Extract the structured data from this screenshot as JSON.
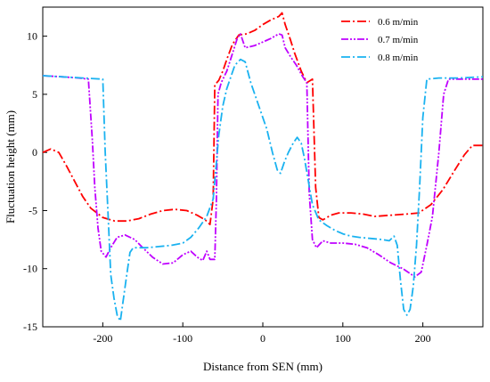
{
  "chart_data": {
    "type": "line",
    "xlabel": "Distance from SEN (mm)",
    "ylabel": "Fluctuation height (mm)",
    "xlim": [
      -275,
      275
    ],
    "ylim": [
      -15,
      12.5
    ],
    "xticks": [
      -200,
      -100,
      0,
      100,
      200
    ],
    "yticks": [
      -15,
      -10,
      -5,
      0,
      5,
      10
    ],
    "xtick_labels": [
      "-200",
      "-100",
      "0",
      "100",
      "200"
    ],
    "ytick_labels": [
      "-15",
      "-10",
      "-5",
      "0",
      "5",
      "10"
    ],
    "legend_position": "top-right",
    "grid": false,
    "series": [
      {
        "name": "0.6 m/min",
        "color": "#ff0000",
        "dash": "10 3 2 3",
        "points": [
          [
            -275,
            0.0
          ],
          [
            -265,
            0.3
          ],
          [
            -255,
            0.0
          ],
          [
            -245,
            -1.2
          ],
          [
            -235,
            -2.5
          ],
          [
            -225,
            -3.8
          ],
          [
            -215,
            -4.8
          ],
          [
            -200,
            -5.6
          ],
          [
            -185,
            -5.9
          ],
          [
            -170,
            -5.9
          ],
          [
            -155,
            -5.7
          ],
          [
            -140,
            -5.3
          ],
          [
            -125,
            -5.0
          ],
          [
            -110,
            -4.9
          ],
          [
            -95,
            -5.0
          ],
          [
            -82,
            -5.4
          ],
          [
            -72,
            -5.8
          ],
          [
            -66,
            -6.2
          ],
          [
            -62,
            -4.0
          ],
          [
            -60,
            5.8
          ],
          [
            -55,
            6.2
          ],
          [
            -50,
            7.0
          ],
          [
            -45,
            8.0
          ],
          [
            -38,
            9.3
          ],
          [
            -30,
            10.1
          ],
          [
            -20,
            10.2
          ],
          [
            -10,
            10.5
          ],
          [
            0,
            11.0
          ],
          [
            10,
            11.4
          ],
          [
            20,
            11.7
          ],
          [
            24,
            12.0
          ],
          [
            28,
            11.0
          ],
          [
            34,
            9.8
          ],
          [
            40,
            8.5
          ],
          [
            48,
            7.0
          ],
          [
            55,
            6.0
          ],
          [
            62,
            6.3
          ],
          [
            66,
            -3.0
          ],
          [
            70,
            -5.6
          ],
          [
            75,
            -5.8
          ],
          [
            85,
            -5.4
          ],
          [
            95,
            -5.2
          ],
          [
            110,
            -5.2
          ],
          [
            125,
            -5.3
          ],
          [
            140,
            -5.5
          ],
          [
            160,
            -5.4
          ],
          [
            180,
            -5.3
          ],
          [
            195,
            -5.2
          ],
          [
            210,
            -4.5
          ],
          [
            225,
            -3.2
          ],
          [
            240,
            -1.5
          ],
          [
            252,
            -0.2
          ],
          [
            262,
            0.6
          ],
          [
            275,
            0.6
          ]
        ]
      },
      {
        "name": "0.7 m/min",
        "color": "#bf00ff",
        "dash": "8 2 2 2 2 2",
        "points": [
          [
            -275,
            6.6
          ],
          [
            -250,
            6.5
          ],
          [
            -230,
            6.4
          ],
          [
            -218,
            6.3
          ],
          [
            -213,
            1.0
          ],
          [
            -210,
            -3.0
          ],
          [
            -206,
            -6.5
          ],
          [
            -202,
            -8.5
          ],
          [
            -196,
            -9.0
          ],
          [
            -190,
            -8.2
          ],
          [
            -182,
            -7.3
          ],
          [
            -172,
            -7.1
          ],
          [
            -160,
            -7.5
          ],
          [
            -150,
            -8.2
          ],
          [
            -138,
            -9.0
          ],
          [
            -125,
            -9.6
          ],
          [
            -112,
            -9.5
          ],
          [
            -100,
            -8.8
          ],
          [
            -90,
            -8.5
          ],
          [
            -82,
            -9.0
          ],
          [
            -75,
            -9.3
          ],
          [
            -70,
            -8.5
          ],
          [
            -66,
            -9.2
          ],
          [
            -60,
            -9.2
          ],
          [
            -58,
            -4.0
          ],
          [
            -56,
            5.0
          ],
          [
            -52,
            6.0
          ],
          [
            -45,
            7.0
          ],
          [
            -38,
            8.5
          ],
          [
            -32,
            9.8
          ],
          [
            -28,
            10.2
          ],
          [
            -22,
            9.0
          ],
          [
            -10,
            9.2
          ],
          [
            0,
            9.5
          ],
          [
            10,
            9.8
          ],
          [
            20,
            10.2
          ],
          [
            24,
            10.1
          ],
          [
            28,
            9.0
          ],
          [
            35,
            8.2
          ],
          [
            42,
            7.5
          ],
          [
            50,
            6.5
          ],
          [
            55,
            6.0
          ],
          [
            58,
            -3.5
          ],
          [
            62,
            -7.5
          ],
          [
            67,
            -8.2
          ],
          [
            75,
            -7.6
          ],
          [
            85,
            -7.8
          ],
          [
            100,
            -7.8
          ],
          [
            115,
            -7.9
          ],
          [
            130,
            -8.2
          ],
          [
            145,
            -8.8
          ],
          [
            160,
            -9.5
          ],
          [
            175,
            -10.0
          ],
          [
            190,
            -10.7
          ],
          [
            198,
            -10.3
          ],
          [
            205,
            -8.0
          ],
          [
            212,
            -5.5
          ],
          [
            220,
            0.0
          ],
          [
            226,
            5.0
          ],
          [
            232,
            6.3
          ],
          [
            250,
            6.3
          ],
          [
            275,
            6.3
          ]
        ]
      },
      {
        "name": "0.8 m/min",
        "color": "#1ab2f0",
        "dash": "10 3 2 3",
        "points": [
          [
            -275,
            6.6
          ],
          [
            -250,
            6.5
          ],
          [
            -225,
            6.4
          ],
          [
            -200,
            6.3
          ],
          [
            -197,
            0.0
          ],
          [
            -193,
            -6.0
          ],
          [
            -190,
            -10.5
          ],
          [
            -186,
            -12.5
          ],
          [
            -182,
            -14.0
          ],
          [
            -178,
            -14.5
          ],
          [
            -175,
            -13.0
          ],
          [
            -170,
            -10.5
          ],
          [
            -166,
            -8.6
          ],
          [
            -162,
            -8.2
          ],
          [
            -145,
            -8.2
          ],
          [
            -130,
            -8.1
          ],
          [
            -115,
            -8.0
          ],
          [
            -100,
            -7.8
          ],
          [
            -90,
            -7.3
          ],
          [
            -80,
            -6.5
          ],
          [
            -70,
            -5.5
          ],
          [
            -62,
            -4.0
          ],
          [
            -55,
            1.5
          ],
          [
            -50,
            4.0
          ],
          [
            -45,
            5.5
          ],
          [
            -40,
            6.5
          ],
          [
            -35,
            7.5
          ],
          [
            -28,
            8.0
          ],
          [
            -22,
            7.8
          ],
          [
            -15,
            6.0
          ],
          [
            -5,
            4.0
          ],
          [
            5,
            2.0
          ],
          [
            12,
            0.0
          ],
          [
            18,
            -1.5
          ],
          [
            22,
            -1.8
          ],
          [
            27,
            -0.8
          ],
          [
            32,
            0.0
          ],
          [
            38,
            0.8
          ],
          [
            43,
            1.3
          ],
          [
            48,
            0.8
          ],
          [
            52,
            -0.5
          ],
          [
            57,
            -2.5
          ],
          [
            62,
            -4.5
          ],
          [
            70,
            -5.8
          ],
          [
            80,
            -6.3
          ],
          [
            90,
            -6.7
          ],
          [
            100,
            -7.0
          ],
          [
            110,
            -7.2
          ],
          [
            120,
            -7.3
          ],
          [
            135,
            -7.4
          ],
          [
            150,
            -7.5
          ],
          [
            158,
            -7.6
          ],
          [
            164,
            -7.2
          ],
          [
            168,
            -8.0
          ],
          [
            172,
            -11.0
          ],
          [
            176,
            -13.5
          ],
          [
            180,
            -14.0
          ],
          [
            184,
            -13.5
          ],
          [
            188,
            -11.5
          ],
          [
            192,
            -8.0
          ],
          [
            196,
            -3.0
          ],
          [
            200,
            3.0
          ],
          [
            205,
            6.3
          ],
          [
            220,
            6.4
          ],
          [
            245,
            6.4
          ],
          [
            275,
            6.5
          ]
        ]
      }
    ]
  }
}
